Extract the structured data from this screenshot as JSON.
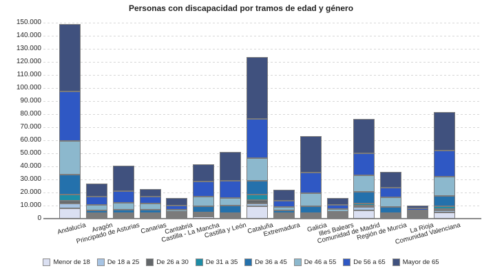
{
  "chart_data": {
    "type": "bar",
    "subtype": "stacked",
    "title": "Personas con discapacidad por tramos de edad y género",
    "xlabel": "",
    "ylabel": "",
    "ylim": [
      0,
      150000
    ],
    "ytick_step": 10000,
    "grid": "horizontal-dashed",
    "legend_position": "bottom",
    "border_color": "#7b7b7b",
    "categories": [
      "Andalucía",
      "Aragón",
      "Principado de Asturias",
      "Canarias",
      "Cantabria",
      "Castilla - La Mancha",
      "Castilla y León",
      "Cataluña",
      "Extremadura",
      "Galicia",
      "Illes Balears",
      "Comunidad de Madrid",
      "Región de Murcia",
      "La Rioja",
      "Comunidad Valenciana"
    ],
    "series": [
      {
        "name": "Menor de 18",
        "color": "#dbe0f2",
        "values": [
          7700,
          400,
          600,
          500,
          400,
          1700,
          1300,
          9500,
          700,
          1200,
          600,
          6300,
          1000,
          200,
          4600
        ]
      },
      {
        "name": "De 18 a 25",
        "color": "#a7c4e4",
        "values": [
          4000,
          400,
          600,
          500,
          300,
          700,
          800,
          2100,
          500,
          1000,
          400,
          2500,
          800,
          150,
          1700
        ]
      },
      {
        "name": "De 26 a 30",
        "color": "#63676a",
        "values": [
          2100,
          300,
          400,
          300,
          200,
          400,
          400,
          2800,
          300,
          600,
          300,
          1000,
          500,
          100,
          1100
        ]
      },
      {
        "name": "De 31 a 35",
        "color": "#1d8da6",
        "values": [
          4400,
          400,
          600,
          400,
          200,
          600,
          700,
          3900,
          500,
          1000,
          400,
          1700,
          900,
          150,
          2100
        ]
      },
      {
        "name": "De 36 a 45",
        "color": "#2471ac",
        "values": [
          15300,
          2100,
          2500,
          2800,
          1100,
          4500,
          5300,
          10900,
          1900,
          5300,
          1300,
          8800,
          4800,
          600,
          7900
        ]
      },
      {
        "name": "De 46 a 55",
        "color": "#8cb8cd",
        "values": [
          25900,
          4200,
          5300,
          4500,
          1700,
          7400,
          6300,
          17200,
          2800,
          10000,
          1700,
          12800,
          7100,
          900,
          14900
        ]
      },
      {
        "name": "De 56 a 65",
        "color": "#2f58c4",
        "values": [
          38100,
          6100,
          9200,
          5300,
          3000,
          11500,
          13000,
          29800,
          4800,
          15800,
          3100,
          16700,
          7500,
          1400,
          20100
        ]
      },
      {
        "name": "Mayor de 65",
        "color": "#40517e",
        "values": [
          51500,
          10100,
          19300,
          5700,
          5900,
          13200,
          22200,
          47700,
          8500,
          27600,
          5500,
          26600,
          12400,
          2500,
          29300
        ]
      }
    ]
  }
}
